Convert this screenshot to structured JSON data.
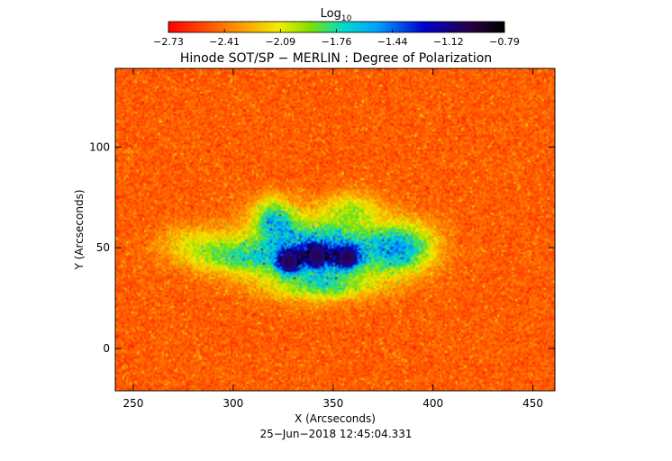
{
  "chart_data": {
    "type": "heatmap",
    "title": "Hinode SOT/SP − MERLIN : Degree of Polarization",
    "xlabel": "X (Arcseconds)",
    "ylabel": "Y (Arcseconds)",
    "xlim": [
      241,
      461
    ],
    "ylim": [
      -21,
      139
    ],
    "xticks": [
      250,
      300,
      350,
      400,
      450
    ],
    "yticks": [
      0,
      50,
      100
    ],
    "colorbar": {
      "label_base": "Log",
      "label_sub": "10",
      "min": -2.73,
      "max": -0.79,
      "ticks": [
        "−2.73",
        "−2.41",
        "−2.09",
        "−1.76",
        "−1.44",
        "−1.12",
        "−0.79"
      ]
    },
    "timestamp": "25−Jun−2018 12:45:04.331",
    "features": [
      {
        "name": "sunspot-umbra-1",
        "x": 328,
        "y": 43,
        "value": -0.85
      },
      {
        "name": "sunspot-umbra-2",
        "x": 342,
        "y": 46,
        "value": -0.82
      },
      {
        "name": "sunspot-umbra-3",
        "x": 357,
        "y": 45,
        "value": -0.9
      }
    ]
  }
}
